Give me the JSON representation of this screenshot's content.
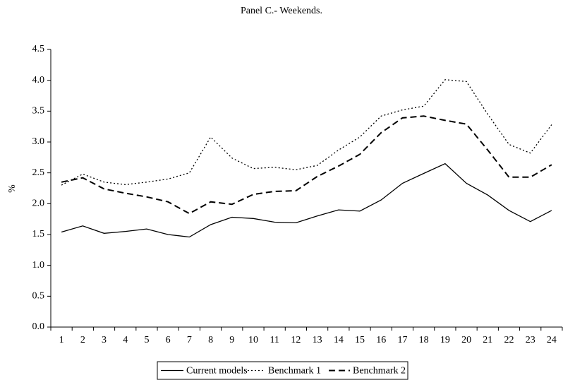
{
  "chart_data": {
    "type": "line",
    "title": "Panel C.- Weekends.",
    "y_label": "%",
    "categories": [
      "1",
      "2",
      "3",
      "4",
      "5",
      "6",
      "7",
      "8",
      "9",
      "10",
      "11",
      "12",
      "13",
      "14",
      "15",
      "16",
      "17",
      "18",
      "19",
      "20",
      "21",
      "22",
      "23",
      "24"
    ],
    "series": [
      {
        "name": "Current models",
        "color": "#000000",
        "style": "solid",
        "values": [
          1.54,
          1.64,
          1.52,
          1.55,
          1.59,
          1.5,
          1.46,
          1.66,
          1.78,
          1.76,
          1.7,
          1.69,
          1.8,
          1.9,
          1.88,
          2.06,
          2.33,
          2.49,
          2.65,
          2.33,
          2.14,
          1.89,
          1.71,
          1.89
        ]
      },
      {
        "name": "Benchmark 1",
        "color": "#000000",
        "style": "dotted",
        "values": [
          2.3,
          2.48,
          2.35,
          2.31,
          2.35,
          2.4,
          2.5,
          3.08,
          2.74,
          2.57,
          2.59,
          2.55,
          2.62,
          2.87,
          3.08,
          3.42,
          3.52,
          3.58,
          4.01,
          3.98,
          3.45,
          2.96,
          2.82,
          3.28
        ]
      },
      {
        "name": "Benchmark 2",
        "color": "#000000",
        "style": "dashed",
        "values": [
          2.35,
          2.42,
          2.24,
          2.17,
          2.11,
          2.03,
          1.84,
          2.03,
          1.99,
          2.15,
          2.2,
          2.21,
          2.44,
          2.61,
          2.8,
          3.15,
          3.39,
          3.42,
          3.35,
          3.29,
          2.87,
          2.43,
          2.43,
          2.63
        ]
      }
    ],
    "ylim": [
      0,
      4.5
    ],
    "yticks": [
      {
        "value": 0,
        "label": "0.0"
      },
      {
        "value": 0.5,
        "label": "0.5"
      },
      {
        "value": 1,
        "label": "1.0"
      },
      {
        "value": 1.5,
        "label": "1.5"
      },
      {
        "value": 2,
        "label": "2.0"
      },
      {
        "value": 2.5,
        "label": "2.5"
      },
      {
        "value": 3,
        "label": "3.0"
      },
      {
        "value": 3.5,
        "label": "3.5"
      },
      {
        "value": 4,
        "label": "4.0"
      },
      {
        "value": 4.5,
        "label": "4.5"
      }
    ],
    "grid": false,
    "legend": "bottom"
  }
}
